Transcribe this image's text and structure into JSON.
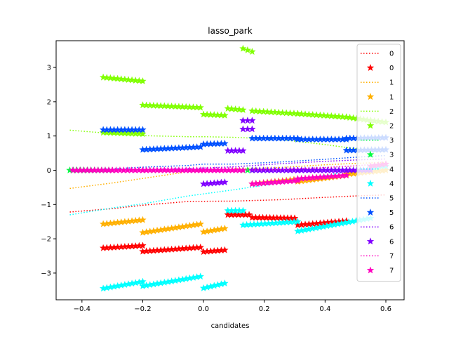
{
  "chart_data": {
    "type": "line",
    "title": "lasso_park",
    "xlabel": "candidates",
    "ylabel": "",
    "xlim": [
      -0.485,
      0.66
    ],
    "ylim": [
      -3.78,
      3.78
    ],
    "xticks": [
      -0.4,
      -0.2,
      0.0,
      0.2,
      0.4,
      0.6
    ],
    "xtick_labels": [
      "−0.4",
      "−0.2",
      "0.0",
      "0.2",
      "0.4",
      "0.6"
    ],
    "yticks": [
      -3,
      -2,
      -1,
      0,
      1,
      2,
      3
    ],
    "ytick_labels": [
      "−3",
      "−2",
      "−1",
      "0",
      "1",
      "2",
      "3"
    ],
    "legend_position": "upper right",
    "series": [
      {
        "name": "0",
        "color": "#ff0000",
        "line_points": [
          [
            -0.44,
            -1.22
          ],
          [
            -0.3,
            -1.12
          ],
          [
            -0.2,
            -1.02
          ],
          [
            -0.05,
            -0.91
          ],
          [
            0.1,
            -0.9
          ],
          [
            0.25,
            -0.86
          ],
          [
            0.4,
            -0.79
          ],
          [
            0.5,
            -0.75
          ],
          [
            0.6,
            -0.72
          ]
        ],
        "marker_segments": [
          [
            -0.33,
            -2.27,
            -0.2,
            -2.2
          ],
          [
            -0.2,
            -2.37,
            -0.01,
            -2.25
          ],
          [
            0.0,
            -2.38,
            0.07,
            -2.33
          ],
          [
            0.08,
            -1.3,
            0.15,
            -1.3
          ],
          [
            0.16,
            -1.38,
            0.3,
            -1.4
          ],
          [
            0.31,
            -1.6,
            0.47,
            -1.48
          ]
        ]
      },
      {
        "name": "1",
        "color": "#ffb000",
        "line_points": [
          [
            -0.44,
            -0.53
          ],
          [
            -0.3,
            -0.37
          ],
          [
            -0.2,
            -0.24
          ],
          [
            -0.05,
            -0.04
          ],
          [
            0.1,
            0.04
          ],
          [
            0.25,
            0.08
          ],
          [
            0.4,
            0.16
          ],
          [
            0.5,
            0.2
          ],
          [
            0.6,
            0.23
          ]
        ],
        "marker_segments": [
          [
            -0.33,
            -1.57,
            -0.2,
            -1.45
          ],
          [
            -0.2,
            -1.82,
            -0.01,
            -1.57
          ],
          [
            0.0,
            -1.8,
            0.07,
            -1.7
          ],
          [
            0.16,
            -0.4,
            0.31,
            -0.26
          ],
          [
            0.31,
            -0.33,
            0.47,
            -0.15
          ],
          [
            0.47,
            -0.12,
            0.6,
            0.0
          ]
        ]
      },
      {
        "name": "2",
        "color": "#80ff00",
        "line_points": [
          [
            -0.44,
            1.17
          ],
          [
            -0.3,
            1.07
          ],
          [
            -0.2,
            1.01
          ],
          [
            -0.05,
            0.98
          ],
          [
            0.0,
            0.98
          ],
          [
            0.1,
            0.96
          ],
          [
            0.25,
            0.9
          ],
          [
            0.4,
            0.75
          ],
          [
            0.5,
            0.63
          ],
          [
            0.6,
            0.53
          ]
        ],
        "marker_segments": [
          [
            -0.33,
            2.71,
            -0.2,
            2.6
          ],
          [
            -0.2,
            1.9,
            -0.01,
            1.83
          ],
          [
            0.0,
            1.63,
            0.07,
            1.6
          ],
          [
            0.08,
            1.8,
            0.13,
            1.76
          ],
          [
            0.13,
            3.55,
            0.16,
            3.46
          ],
          [
            0.16,
            1.73,
            0.31,
            1.65
          ],
          [
            0.31,
            1.65,
            0.47,
            1.55
          ],
          [
            0.47,
            1.55,
            0.55,
            1.45
          ],
          [
            0.55,
            1.45,
            0.6,
            1.4
          ],
          [
            -0.33,
            1.1,
            -0.2,
            1.06
          ]
        ]
      },
      {
        "name": "3",
        "color": "#00ff40",
        "line_points": [],
        "marker_segments": [
          [
            -0.44,
            0.0,
            -0.3,
            0.0
          ],
          [
            0.13,
            0.0,
            0.16,
            0.0
          ]
        ]
      },
      {
        "name": "4",
        "color": "#00ffff",
        "line_points": [
          [
            -0.44,
            -1.3
          ],
          [
            -0.3,
            -1.1
          ],
          [
            -0.2,
            -0.98
          ],
          [
            -0.05,
            -0.75
          ],
          [
            0.1,
            -0.57
          ],
          [
            0.25,
            -0.37
          ],
          [
            0.4,
            -0.15
          ],
          [
            0.5,
            0.0
          ],
          [
            0.6,
            0.13
          ]
        ],
        "marker_segments": [
          [
            -0.33,
            -3.45,
            -0.2,
            -3.25
          ],
          [
            -0.2,
            -3.38,
            -0.01,
            -3.1
          ],
          [
            0.0,
            -3.44,
            0.07,
            -3.3
          ],
          [
            0.08,
            -1.18,
            0.13,
            -1.18
          ],
          [
            0.13,
            -1.6,
            0.31,
            -1.5
          ],
          [
            0.31,
            -1.78,
            0.55,
            -1.4
          ],
          [
            0.55,
            0.1,
            0.6,
            0.12
          ]
        ]
      },
      {
        "name": "5",
        "color": "#0050ff",
        "line_points": [
          [
            -0.44,
            0.0
          ],
          [
            -0.3,
            0.04
          ],
          [
            -0.2,
            0.09
          ],
          [
            -0.05,
            0.14
          ],
          [
            0.0,
            0.18
          ],
          [
            0.1,
            0.18
          ],
          [
            0.25,
            0.24
          ],
          [
            0.4,
            0.32
          ],
          [
            0.5,
            0.38
          ],
          [
            0.6,
            0.43
          ]
        ],
        "marker_segments": [
          [
            -0.33,
            1.18,
            -0.2,
            1.18
          ],
          [
            -0.2,
            0.6,
            -0.01,
            0.68
          ],
          [
            0.0,
            0.76,
            0.07,
            0.78
          ],
          [
            0.16,
            0.93,
            0.31,
            0.93
          ],
          [
            0.31,
            0.9,
            0.47,
            0.9
          ],
          [
            0.47,
            0.93,
            0.6,
            0.95
          ],
          [
            0.47,
            0.58,
            0.6,
            0.6
          ]
        ]
      },
      {
        "name": "6",
        "color": "#8000ff",
        "line_points": [
          [
            -0.44,
            0.0
          ],
          [
            -0.3,
            0.01
          ],
          [
            -0.2,
            0.02
          ],
          [
            -0.05,
            0.05
          ],
          [
            0.1,
            0.1
          ],
          [
            0.25,
            0.19
          ],
          [
            0.4,
            0.26
          ],
          [
            0.5,
            0.3
          ],
          [
            0.6,
            0.33
          ]
        ],
        "marker_segments": [
          [
            0.0,
            -0.4,
            0.07,
            -0.35
          ],
          [
            0.08,
            0.57,
            0.13,
            0.57
          ],
          [
            0.13,
            1.45,
            0.16,
            1.45
          ],
          [
            0.13,
            1.2,
            0.16,
            1.2
          ],
          [
            0.16,
            0.0,
            0.31,
            0.0
          ],
          [
            0.31,
            0.0,
            0.47,
            0.0
          ],
          [
            0.47,
            0.0,
            0.55,
            0.0
          ]
        ]
      },
      {
        "name": "7",
        "color": "#ff00c0",
        "line_points": [
          [
            -0.44,
            0.0
          ],
          [
            -0.3,
            0.0
          ],
          [
            -0.2,
            0.0
          ],
          [
            -0.05,
            0.0
          ],
          [
            0.1,
            0.0
          ],
          [
            0.25,
            0.02
          ],
          [
            0.4,
            0.08
          ],
          [
            0.5,
            0.13
          ],
          [
            0.6,
            0.2
          ]
        ],
        "marker_segments": [
          [
            -0.43,
            0.0,
            -0.3,
            0.0
          ],
          [
            -0.3,
            0.0,
            -0.2,
            0.0
          ],
          [
            -0.2,
            0.0,
            -0.01,
            0.0
          ],
          [
            0.0,
            0.0,
            0.13,
            0.0
          ],
          [
            0.16,
            -0.4,
            0.31,
            -0.3
          ],
          [
            0.31,
            -0.25,
            0.47,
            -0.15
          ],
          [
            0.55,
            0.12,
            0.6,
            0.18
          ]
        ]
      }
    ]
  }
}
